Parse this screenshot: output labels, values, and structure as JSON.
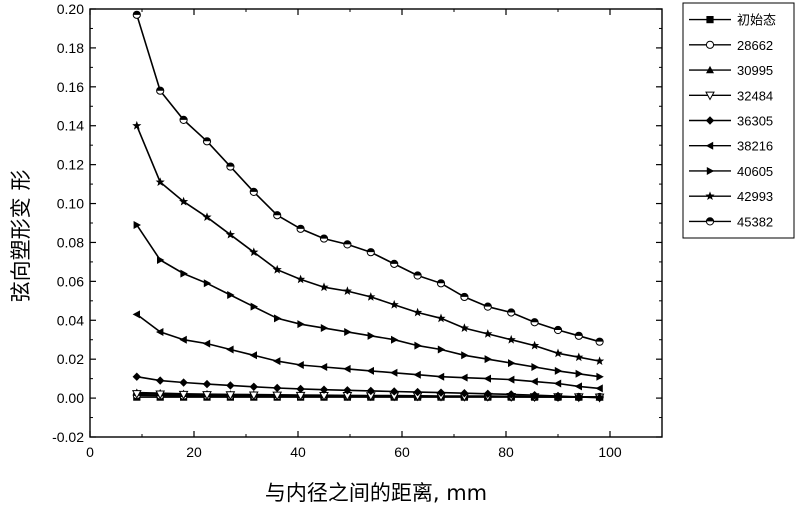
{
  "chart_data": {
    "type": "line",
    "xlabel": "与内径之间的距离, mm",
    "ylabel": "弦向塑形变 形",
    "xlim": [
      0,
      110
    ],
    "ylim": [
      -0.02,
      0.2
    ],
    "xticks": [
      "0",
      "20",
      "40",
      "60",
      "80",
      "100"
    ],
    "xtick_values": [
      0,
      20,
      40,
      60,
      80,
      100
    ],
    "yticks": [
      "-0.02",
      "0.00",
      "0.02",
      "0.04",
      "0.06",
      "0.08",
      "0.10",
      "0.12",
      "0.14",
      "0.16",
      "0.18",
      "0.20"
    ],
    "ytick_values": [
      -0.02,
      0.0,
      0.02,
      0.04,
      0.06,
      0.08,
      0.1,
      0.12,
      0.14,
      0.16,
      0.18,
      0.2
    ],
    "grid": false,
    "legend_position": "outside-right",
    "series": [
      {
        "name": "初始态",
        "marker": "filled-square",
        "x": [
          9,
          13.5,
          18,
          22.5,
          27,
          31.5,
          36,
          40.5,
          45,
          49.5,
          54,
          58.5,
          63,
          67.5,
          72,
          76.5,
          81,
          85.5,
          90,
          94,
          98
        ],
        "y": [
          0.0005,
          0.0005,
          0.0005,
          0.0005,
          0.0005,
          0.0005,
          0.0005,
          0.0005,
          0.0005,
          0.0005,
          0.0005,
          0.0005,
          0.0005,
          0.0005,
          0.0005,
          0.0005,
          0.0005,
          0.0005,
          0.0005,
          0.0005,
          0.0005
        ]
      },
      {
        "name": "28662",
        "marker": "open-circle",
        "x": [
          9,
          13.5,
          18,
          22.5,
          27,
          31.5,
          36,
          40.5,
          45,
          49.5,
          54,
          58.5,
          63,
          67.5,
          72,
          76.5,
          81,
          85.5,
          90,
          94,
          98
        ],
        "y": [
          0.0015,
          0.0013,
          0.0012,
          0.0012,
          0.0011,
          0.0011,
          0.001,
          0.001,
          0.001,
          0.0009,
          0.0009,
          0.0009,
          0.0008,
          0.0008,
          0.0008,
          0.0007,
          0.0007,
          0.0007,
          0.0006,
          0.0006,
          0.0006
        ]
      },
      {
        "name": "30995",
        "marker": "filled-triangle-up",
        "x": [
          9,
          13.5,
          18,
          22.5,
          27,
          31.5,
          36,
          40.5,
          45,
          49.5,
          54,
          58.5,
          63,
          67.5,
          72,
          76.5,
          81,
          85.5,
          90,
          94,
          98
        ],
        "y": [
          0.0028,
          0.0025,
          0.0022,
          0.002,
          0.0019,
          0.0018,
          0.0017,
          0.0016,
          0.0015,
          0.0014,
          0.0013,
          0.0013,
          0.0012,
          0.0011,
          0.0011,
          0.001,
          0.0009,
          0.0008,
          0.0007,
          0.0006,
          0.0005
        ]
      },
      {
        "name": "32484",
        "marker": "open-triangle-down",
        "x": [
          9,
          13.5,
          18,
          22.5,
          27,
          31.5,
          36,
          40.5,
          45,
          49.5,
          54,
          58.5,
          63,
          67.5,
          72,
          76.5,
          81,
          85.5,
          90,
          94,
          98
        ],
        "y": [
          0.0022,
          0.002,
          0.0018,
          0.0017,
          0.0016,
          0.0015,
          0.0014,
          0.0013,
          0.0012,
          0.0012,
          0.0011,
          0.001,
          0.001,
          0.0009,
          0.0008,
          0.0008,
          0.0007,
          0.0006,
          0.0006,
          0.0005,
          0.0004
        ]
      },
      {
        "name": "36305",
        "marker": "filled-diamond",
        "x": [
          9,
          13.5,
          18,
          22.5,
          27,
          31.5,
          36,
          40.5,
          45,
          49.5,
          54,
          58.5,
          63,
          67.5,
          72,
          76.5,
          81,
          85.5,
          90,
          94,
          98
        ],
        "y": [
          0.011,
          0.009,
          0.008,
          0.0072,
          0.0065,
          0.0058,
          0.0052,
          0.0047,
          0.0043,
          0.004,
          0.0037,
          0.0034,
          0.0031,
          0.0028,
          0.0025,
          0.0022,
          0.0019,
          0.0015,
          0.0011,
          0.0006,
          0.0002
        ]
      },
      {
        "name": "38216",
        "marker": "filled-triangle-left",
        "x": [
          9,
          13.5,
          18,
          22.5,
          27,
          31.5,
          36,
          40.5,
          45,
          49.5,
          54,
          58.5,
          63,
          67.5,
          72,
          76.5,
          81,
          85.5,
          90,
          94,
          98
        ],
        "y": [
          0.043,
          0.034,
          0.03,
          0.028,
          0.025,
          0.022,
          0.019,
          0.017,
          0.016,
          0.015,
          0.014,
          0.013,
          0.012,
          0.011,
          0.0105,
          0.01,
          0.0095,
          0.0085,
          0.0075,
          0.006,
          0.005
        ]
      },
      {
        "name": "40605",
        "marker": "filled-triangle-right",
        "x": [
          9,
          13.5,
          18,
          22.5,
          27,
          31.5,
          36,
          40.5,
          45,
          49.5,
          54,
          58.5,
          63,
          67.5,
          72,
          76.5,
          81,
          85.5,
          90,
          94,
          98
        ],
        "y": [
          0.089,
          0.071,
          0.064,
          0.059,
          0.053,
          0.047,
          0.041,
          0.038,
          0.036,
          0.034,
          0.032,
          0.03,
          0.027,
          0.025,
          0.022,
          0.02,
          0.018,
          0.016,
          0.014,
          0.0125,
          0.011
        ]
      },
      {
        "name": "42993",
        "marker": "filled-star",
        "x": [
          9,
          13.5,
          18,
          22.5,
          27,
          31.5,
          36,
          40.5,
          45,
          49.5,
          54,
          58.5,
          63,
          67.5,
          72,
          76.5,
          81,
          85.5,
          90,
          94,
          98
        ],
        "y": [
          0.14,
          0.111,
          0.101,
          0.093,
          0.084,
          0.075,
          0.066,
          0.061,
          0.057,
          0.055,
          0.052,
          0.048,
          0.044,
          0.041,
          0.036,
          0.033,
          0.03,
          0.027,
          0.023,
          0.021,
          0.019
        ]
      },
      {
        "name": "45382",
        "marker": "half-filled-circle",
        "x": [
          9,
          13.5,
          18,
          22.5,
          27,
          31.5,
          36,
          40.5,
          45,
          49.5,
          54,
          58.5,
          63,
          67.5,
          72,
          76.5,
          81,
          85.5,
          90,
          94,
          98
        ],
        "y": [
          0.197,
          0.158,
          0.143,
          0.132,
          0.119,
          0.106,
          0.094,
          0.087,
          0.082,
          0.079,
          0.075,
          0.069,
          0.063,
          0.059,
          0.052,
          0.047,
          0.044,
          0.039,
          0.035,
          0.032,
          0.029
        ]
      }
    ]
  }
}
